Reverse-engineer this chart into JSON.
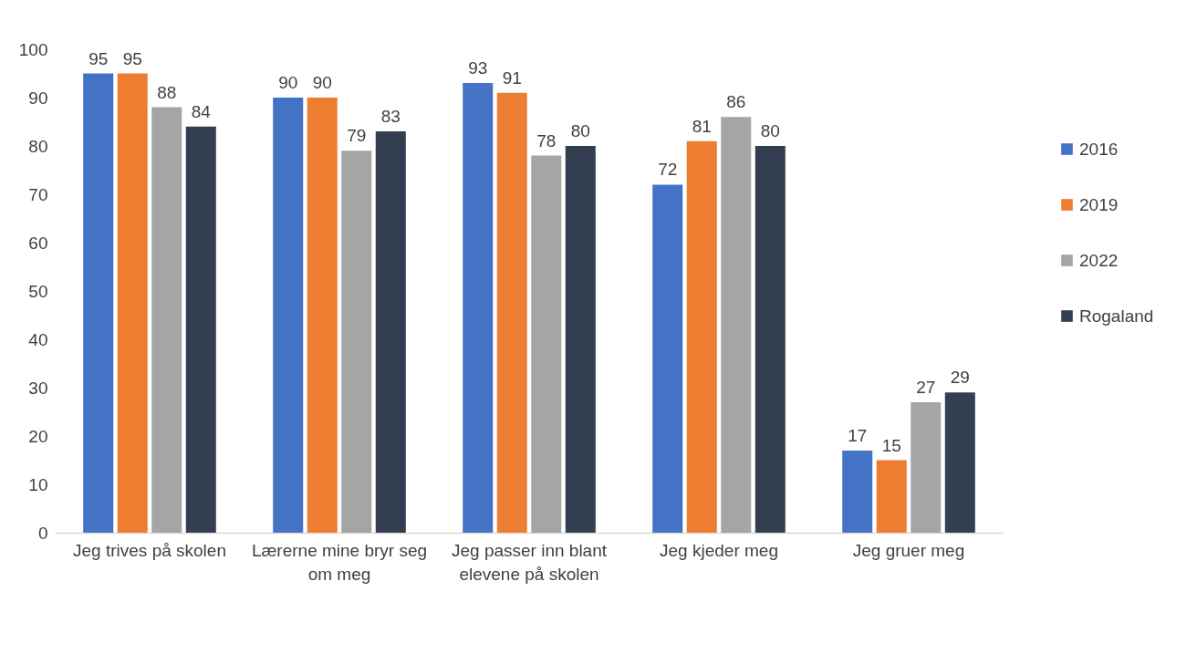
{
  "chart_data": {
    "type": "bar",
    "categories": [
      "Jeg trives på skolen",
      "Lærerne mine bryr seg om meg",
      "Jeg passer inn blant elevene på skolen",
      "Jeg kjeder meg",
      "Jeg gruer meg"
    ],
    "series": [
      {
        "name": "2016",
        "color": "#4472c4",
        "values": [
          95,
          90,
          93,
          72,
          17
        ]
      },
      {
        "name": "2019",
        "color": "#ed7d31",
        "values": [
          95,
          90,
          91,
          81,
          15
        ]
      },
      {
        "name": "2022",
        "color": "#a5a5a5",
        "values": [
          88,
          79,
          78,
          86,
          27
        ]
      },
      {
        "name": "Rogaland",
        "color": "#333f50",
        "values": [
          84,
          83,
          80,
          80,
          29
        ]
      }
    ],
    "ylim": [
      0,
      100
    ],
    "yticks": [
      0,
      10,
      20,
      30,
      40,
      50,
      60,
      70,
      80,
      90,
      100
    ],
    "data_labels": true,
    "grid": false,
    "legend": "right"
  }
}
